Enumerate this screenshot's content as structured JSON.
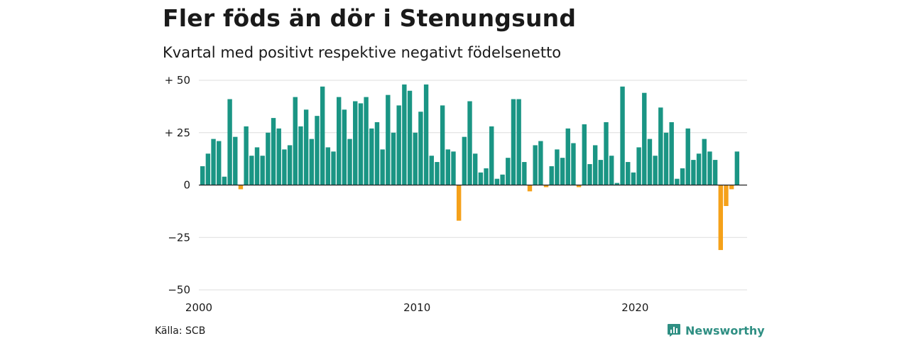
{
  "title": "Fler föds än dör i Stenungsund",
  "subtitle": "Kvartal med positivt respektive negativt födelsenetto",
  "source": "Källa: SCB",
  "brand": "Newsworthy",
  "colors": {
    "positive": "#1a9584",
    "negative": "#f5a11a",
    "grid": "#dddddd",
    "axis": "#222222",
    "brand": "#2f8f83"
  },
  "chart_data": {
    "type": "bar",
    "title": "Fler föds än dör i Stenungsund",
    "subtitle": "Kvartal med positivt respektive negativt födelsenetto",
    "xlabel": "",
    "ylabel": "",
    "ylim": [
      -50,
      50
    ],
    "yticks": [
      {
        "value": 50,
        "label": "+ 50"
      },
      {
        "value": 25,
        "label": "+ 25"
      },
      {
        "value": 0,
        "label": "0"
      },
      {
        "value": -25,
        "label": "−25"
      },
      {
        "value": -50,
        "label": "−50"
      }
    ],
    "x_start": "2000",
    "period": "quarter",
    "xticks": [
      {
        "index": 0,
        "label": "2000"
      },
      {
        "index": 40,
        "label": "2010"
      },
      {
        "index": 80,
        "label": "2020"
      }
    ],
    "grid": true,
    "values": [
      9,
      15,
      22,
      21,
      4,
      41,
      23,
      -2,
      28,
      14,
      18,
      14,
      25,
      32,
      27,
      17,
      19,
      42,
      28,
      36,
      22,
      33,
      47,
      18,
      16,
      42,
      36,
      22,
      40,
      39,
      42,
      27,
      30,
      17,
      43,
      25,
      38,
      48,
      45,
      25,
      35,
      48,
      14,
      11,
      38,
      17,
      16,
      -17,
      23,
      40,
      15,
      6,
      8,
      28,
      3,
      5,
      13,
      41,
      41,
      11,
      -3,
      19,
      21,
      -1,
      9,
      17,
      13,
      27,
      20,
      -1,
      29,
      10,
      19,
      12,
      30,
      14,
      1,
      47,
      11,
      6,
      18,
      44,
      22,
      14,
      37,
      25,
      30,
      3,
      8,
      27,
      12,
      15,
      22,
      16,
      12,
      -31,
      -10,
      -2,
      16
    ]
  }
}
